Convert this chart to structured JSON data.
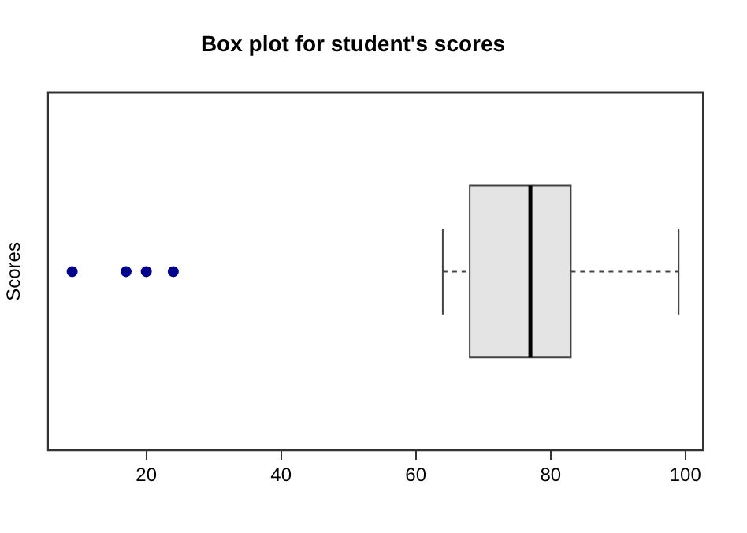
{
  "chart_data": {
    "type": "box",
    "title": "Box plot for student's scores",
    "ylabel": "Scores",
    "orientation": "horizontal",
    "categories": [
      null
    ],
    "series": [
      {
        "color": "#e4e4e4",
        "boxes": [
          {
            "low": 64,
            "q1": 68,
            "median": 77,
            "q3": 83,
            "high": 99,
            "outliers": [
              9,
              17,
              20,
              24
            ]
          }
        ]
      }
    ],
    "xlim": [
      5.4,
      102.6
    ],
    "xticks": [
      20,
      40,
      60,
      80,
      100
    ],
    "grid": false,
    "legend": false,
    "tick_labels": "x"
  }
}
